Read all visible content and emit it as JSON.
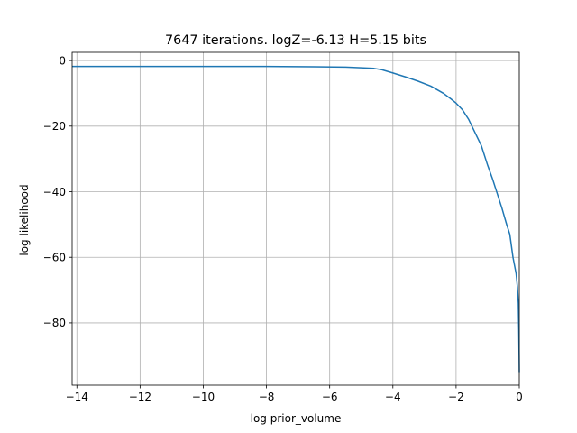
{
  "chart_data": {
    "type": "line",
    "title": "7647 iterations. logZ=-6.13 H=5.15 bits",
    "xlabel": "log prior_volume",
    "ylabel": "log likelihood",
    "xlim": [
      -14.15,
      0.0
    ],
    "ylim": [
      -99.0,
      2.5
    ],
    "grid": true,
    "x_ticks": [
      -14,
      -12,
      -10,
      -8,
      -6,
      -4,
      -2,
      0
    ],
    "x_tick_labels": [
      "−14",
      "−12",
      "−10",
      "−8",
      "−6",
      "−4",
      "−2",
      "0"
    ],
    "y_ticks": [
      0,
      -20,
      -40,
      -60,
      -80
    ],
    "y_tick_labels": [
      "0",
      "−20",
      "−40",
      "−60",
      "−80"
    ],
    "series": [
      {
        "color": "#1f77b4",
        "x": [
          -14.15,
          -12.0,
          -10.0,
          -8.0,
          -6.5,
          -5.5,
          -5.0,
          -4.6,
          -4.35,
          -4.0,
          -3.6,
          -3.2,
          -2.8,
          -2.4,
          -2.15,
          -2.0,
          -1.8,
          -1.6,
          -1.4,
          -1.2,
          -1.0,
          -0.85,
          -0.7,
          -0.55,
          -0.4,
          -0.3,
          -0.2,
          -0.1,
          -0.06,
          -0.03,
          -0.015,
          -0.005,
          0.0
        ],
        "y": [
          -1.8,
          -1.8,
          -1.8,
          -1.8,
          -1.9,
          -2.0,
          -2.2,
          -2.4,
          -2.8,
          -3.8,
          -5.0,
          -6.3,
          -7.8,
          -10.0,
          -11.8,
          -13.0,
          -15.0,
          -18.0,
          -22.0,
          -26.0,
          -32.0,
          -36.0,
          -40.5,
          -45.0,
          -50.0,
          -53.0,
          -60.0,
          -65.0,
          -69.0,
          -74.0,
          -82.0,
          -90.0,
          -95.0
        ]
      }
    ]
  }
}
